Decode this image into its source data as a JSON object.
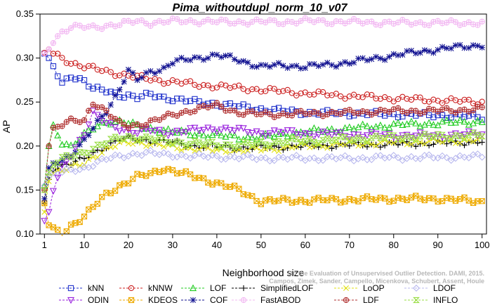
{
  "chart_data": {
    "type": "line",
    "title": "Pima_withoutdupl_norm_10_v07",
    "xlabel": "Neighborhood size",
    "ylabel": "AP",
    "xlim": [
      1,
      100
    ],
    "ylim": [
      0.1,
      0.35
    ],
    "x_ticks": [
      1,
      10,
      20,
      30,
      40,
      50,
      60,
      70,
      80,
      90,
      100
    ],
    "y_ticks": [
      0.1,
      0.15,
      0.2,
      0.25,
      0.3,
      0.35
    ],
    "x_tick_labels": [
      "1",
      "10",
      "20",
      "30",
      "40",
      "50",
      "60",
      "70",
      "80",
      "90",
      "100"
    ],
    "y_tick_labels": [
      "0.10",
      "0.15",
      "0.20",
      "0.25",
      "0.30",
      "0.35"
    ],
    "grid": false,
    "legend_placement": "bottom",
    "x_knots": [
      1,
      2,
      3,
      5,
      7,
      10,
      12,
      15,
      18,
      20,
      22,
      25,
      28,
      30,
      35,
      40,
      45,
      50,
      55,
      60,
      70,
      80,
      90,
      100
    ],
    "series": [
      {
        "name": "kNN",
        "color": "#2233cc",
        "marker": "square",
        "line": "dash",
        "values": [
          0.305,
          0.3,
          0.29,
          0.27,
          0.28,
          0.275,
          0.265,
          0.262,
          0.258,
          0.258,
          0.255,
          0.258,
          0.255,
          0.254,
          0.25,
          0.248,
          0.245,
          0.242,
          0.24,
          0.238,
          0.237,
          0.236,
          0.235,
          0.233
        ]
      },
      {
        "name": "kNNW",
        "color": "#cc2222",
        "marker": "circle",
        "line": "dash",
        "values": [
          0.306,
          0.31,
          0.305,
          0.3,
          0.295,
          0.29,
          0.288,
          0.285,
          0.282,
          0.28,
          0.278,
          0.276,
          0.274,
          0.273,
          0.27,
          0.268,
          0.266,
          0.264,
          0.262,
          0.26,
          0.257,
          0.254,
          0.252,
          0.25
        ]
      },
      {
        "name": "LOF",
        "color": "#22cc22",
        "marker": "triangle-up",
        "line": "dash",
        "values": [
          0.155,
          0.2,
          0.222,
          0.205,
          0.2,
          0.212,
          0.22,
          0.228,
          0.228,
          0.226,
          0.222,
          0.22,
          0.218,
          0.216,
          0.214,
          0.212,
          0.21,
          0.21,
          0.213,
          0.216,
          0.22,
          0.224,
          0.226,
          0.228
        ]
      },
      {
        "name": "SimplifiedLOF",
        "color": "#000000",
        "marker": "plus",
        "line": "dash",
        "values": [
          0.135,
          0.162,
          0.175,
          0.178,
          0.18,
          0.185,
          0.192,
          0.2,
          0.207,
          0.208,
          0.208,
          0.206,
          0.205,
          0.204,
          0.2,
          0.199,
          0.198,
          0.198,
          0.199,
          0.2,
          0.201,
          0.202,
          0.203,
          0.205
        ]
      },
      {
        "name": "LoOP",
        "color": "#e0e010",
        "marker": "x",
        "line": "dash",
        "values": [
          0.125,
          0.16,
          0.17,
          0.172,
          0.175,
          0.18,
          0.188,
          0.196,
          0.202,
          0.204,
          0.205,
          0.202,
          0.2,
          0.199,
          0.197,
          0.195,
          0.195,
          0.196,
          0.198,
          0.2,
          0.202,
          0.204,
          0.205,
          0.207
        ]
      },
      {
        "name": "LDOF",
        "color": "#b8b8ee",
        "marker": "diamond",
        "line": "dash",
        "values": [
          0.155,
          0.165,
          0.168,
          0.17,
          0.172,
          0.175,
          0.18,
          0.185,
          0.188,
          0.19,
          0.192,
          0.192,
          0.19,
          0.19,
          0.188,
          0.188,
          0.187,
          0.186,
          0.186,
          0.186,
          0.186,
          0.187,
          0.187,
          0.188
        ]
      },
      {
        "name": "ODIN",
        "color": "#9922dd",
        "marker": "triangle-down",
        "line": "dash",
        "values": [
          0.115,
          0.125,
          0.15,
          0.175,
          0.19,
          0.215,
          0.238,
          0.225,
          0.22,
          0.218,
          0.216,
          0.218,
          0.215,
          0.216,
          0.218,
          0.22,
          0.218,
          0.215,
          0.216,
          0.214,
          0.213,
          0.212,
          0.212,
          0.214
        ]
      },
      {
        "name": "KDEOS",
        "color": "#eeaa00",
        "marker": "square-x",
        "line": "dash",
        "values": [
          0.135,
          0.11,
          0.105,
          0.1,
          0.11,
          0.12,
          0.13,
          0.145,
          0.155,
          0.16,
          0.165,
          0.168,
          0.175,
          0.172,
          0.165,
          0.158,
          0.15,
          0.137,
          0.138,
          0.138,
          0.139,
          0.14,
          0.14,
          0.137
        ]
      },
      {
        "name": "COF",
        "color": "#101090",
        "marker": "star",
        "line": "dash",
        "values": [
          0.14,
          0.175,
          0.18,
          0.185,
          0.19,
          0.205,
          0.22,
          0.24,
          0.265,
          0.285,
          0.275,
          0.285,
          0.288,
          0.295,
          0.3,
          0.303,
          0.298,
          0.29,
          0.292,
          0.29,
          0.295,
          0.303,
          0.31,
          0.315
        ]
      },
      {
        "name": "FastABOD",
        "color": "#f2b8f2",
        "marker": "circle-dot",
        "line": "dash",
        "values": [
          0.305,
          0.31,
          0.32,
          0.33,
          0.335,
          0.335,
          0.335,
          0.337,
          0.338,
          0.34,
          0.342,
          0.34,
          0.341,
          0.342,
          0.342,
          0.341,
          0.341,
          0.341,
          0.341,
          0.342,
          0.341,
          0.34,
          0.34,
          0.34
        ]
      },
      {
        "name": "LDF",
        "color": "#b03030",
        "marker": "circle-plus",
        "line": "dash",
        "values": [
          0.15,
          0.2,
          0.22,
          0.225,
          0.228,
          0.228,
          0.25,
          0.24,
          0.225,
          0.222,
          0.224,
          0.228,
          0.232,
          0.235,
          0.242,
          0.246,
          0.238,
          0.236,
          0.236,
          0.237,
          0.238,
          0.24,
          0.24,
          0.242
        ]
      },
      {
        "name": "INFLO",
        "color": "#99dd44",
        "marker": "hourglass",
        "line": "dash",
        "values": [
          0.15,
          0.17,
          0.18,
          0.185,
          0.188,
          0.193,
          0.198,
          0.204,
          0.209,
          0.21,
          0.21,
          0.208,
          0.206,
          0.205,
          0.203,
          0.202,
          0.201,
          0.203,
          0.205,
          0.206,
          0.208,
          0.21,
          0.211,
          0.212
        ]
      }
    ],
    "credit_lines": [
      "Campos, Zimek, Sander, Campello, Micenkova, Schubert, Assent, Houle",
      "On the Evaluation of Unsupervised Outlier Detection. DAMI, 2015."
    ]
  }
}
